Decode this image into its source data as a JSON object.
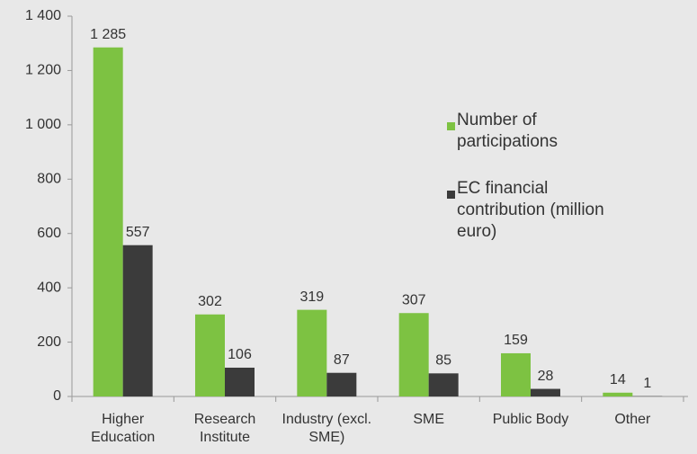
{
  "chart_data": {
    "type": "bar",
    "categories": [
      "Higher Education",
      "Research Institute",
      "Industry (excl. SME)",
      "SME",
      "Public Body",
      "Other"
    ],
    "series": [
      {
        "name": "Number of participations",
        "color": "#7dc242",
        "values": [
          1285,
          302,
          319,
          307,
          159,
          14
        ],
        "value_labels": [
          "1 285",
          "302",
          "319",
          "307",
          "159",
          "14"
        ]
      },
      {
        "name": "EC financial contribution (million euro)",
        "color": "#3b3b3b",
        "values": [
          557,
          106,
          87,
          85,
          28,
          1
        ]
      }
    ],
    "ylim": [
      0,
      1400
    ],
    "yticks": [
      0,
      200,
      400,
      600,
      800,
      {
        "value": 1000,
        "label": "1 000"
      },
      {
        "value": 1200,
        "label": "1 200"
      },
      {
        "value": 1400,
        "label": "1 400"
      }
    ],
    "grid": false,
    "legend": "right"
  }
}
